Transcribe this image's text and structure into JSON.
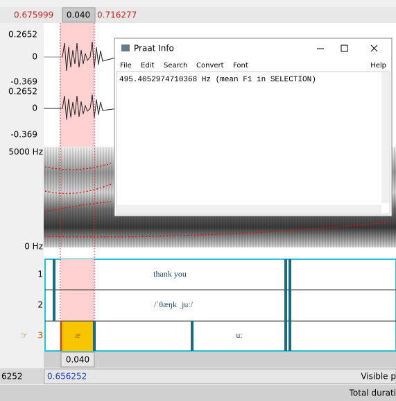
{
  "editor": {
    "top_bar": {
      "start": "0.675999",
      "duration": "0.040",
      "end": "0.716277"
    },
    "waveform": {
      "channel_1": {
        "max": "0.2652",
        "zero": "0",
        "min": "-0.369"
      },
      "channel_2": {
        "max": "0.2652",
        "zero": "0",
        "min": "-0.369"
      }
    },
    "spectrogram": {
      "top": "5000 Hz",
      "bottom": "0 Hz"
    },
    "tiers": [
      {
        "number": "1",
        "intervals": [
          "thank you"
        ]
      },
      {
        "number": "2",
        "intervals": [
          "/ˈθæŋk ˌjuː/"
        ]
      },
      {
        "number": "3",
        "pointer": "☞",
        "intervals": [
          "æ",
          "uː"
        ]
      }
    ],
    "bottom": {
      "selection_duration": "0.040",
      "left_time": "6252",
      "visible_start": "0.656252",
      "visible_label": "Visible p",
      "total_label": "Total durati"
    }
  },
  "info_window": {
    "title": "Praat Info",
    "menu": [
      "File",
      "Edit",
      "Search",
      "Convert",
      "Font"
    ],
    "help": "Help",
    "text": "495.4052974710368 Hz (mean F1 in SELECTION)"
  }
}
